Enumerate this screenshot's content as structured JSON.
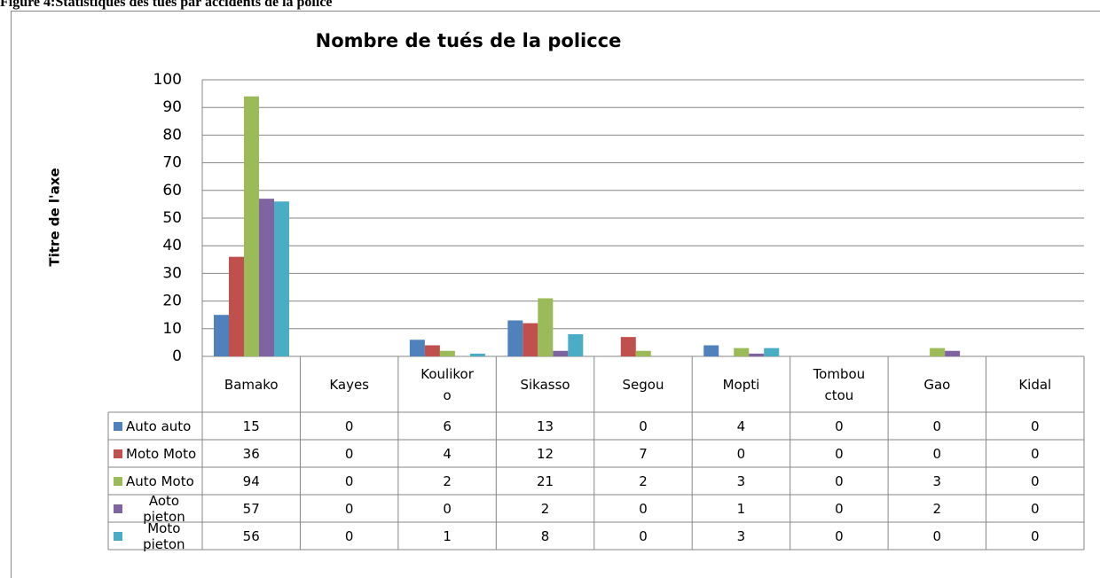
{
  "caption": "Figure 4:Statistiques des tués par accidents de la police",
  "chart_data": {
    "type": "bar",
    "title": "Nombre de tués de la policce",
    "y_label": "Titre de l'axe",
    "categories": [
      "Bamako",
      "Kayes",
      "Koulikoro",
      "Sikasso",
      "Segou",
      "Mopti",
      "Tombouctou",
      "Gao",
      "Kidal"
    ],
    "series": [
      {
        "name": "Auto auto",
        "color": "#4f81bd",
        "values": [
          15,
          0,
          6,
          13,
          0,
          4,
          0,
          0,
          0
        ]
      },
      {
        "name": "Moto Moto",
        "color": "#c0504d",
        "values": [
          36,
          0,
          4,
          12,
          7,
          0,
          0,
          0,
          0
        ]
      },
      {
        "name": "Auto Moto",
        "color": "#9bbb59",
        "values": [
          94,
          0,
          2,
          21,
          2,
          3,
          0,
          3,
          0
        ]
      },
      {
        "name": "Aoto pieton",
        "color": "#8064a2",
        "values": [
          57,
          0,
          0,
          2,
          0,
          1,
          0,
          2,
          0
        ]
      },
      {
        "name": "Moto pieton",
        "color": "#4bacc6",
        "values": [
          56,
          0,
          1,
          8,
          0,
          3,
          0,
          0,
          0
        ]
      }
    ],
    "ylim": [
      0,
      100
    ],
    "yticks": [
      0,
      10,
      20,
      30,
      40,
      50,
      60,
      70,
      80,
      90,
      100
    ],
    "grid": true
  }
}
